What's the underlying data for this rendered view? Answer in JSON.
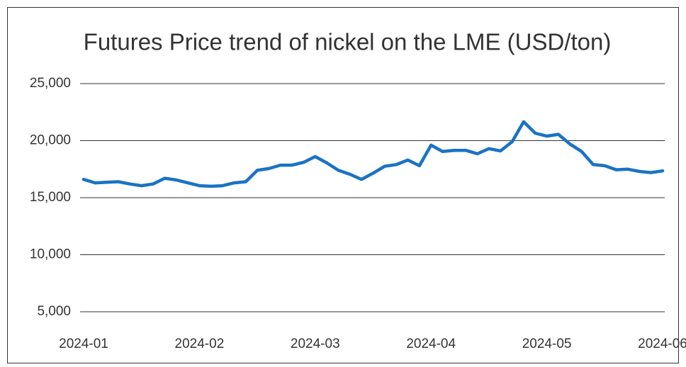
{
  "chart_data": {
    "type": "line",
    "title": "Futures Price trend of nickel on the LME (USD/ton)",
    "categories": [
      "2024-01",
      null,
      null,
      null,
      null,
      null,
      null,
      null,
      null,
      null,
      "2024-02",
      null,
      null,
      null,
      null,
      null,
      null,
      null,
      null,
      null,
      "2024-03",
      null,
      null,
      null,
      null,
      null,
      null,
      null,
      null,
      null,
      "2024-04",
      null,
      null,
      null,
      null,
      null,
      null,
      null,
      null,
      null,
      "2024-05",
      null,
      null,
      null,
      null,
      null,
      null,
      null,
      null,
      null,
      "2024-06"
    ],
    "series": [
      {
        "name": "Nickel",
        "color": "#1a73c4",
        "values": [
          16600,
          16300,
          16350,
          16400,
          16200,
          16050,
          16200,
          16700,
          16550,
          16300,
          16050,
          16000,
          16050,
          16300,
          16400,
          17400,
          17550,
          17850,
          17850,
          18100,
          18600,
          18050,
          17400,
          17050,
          16600,
          17150,
          17750,
          17900,
          18300,
          17800,
          19600,
          19050,
          19150,
          19150,
          18850,
          19300,
          19100,
          19900,
          21650,
          20650,
          20400,
          20550,
          19700,
          19050,
          17900,
          17800,
          17450,
          17500,
          17300,
          17200,
          17350
        ]
      }
    ],
    "ylim": [
      5000,
      25000
    ],
    "yticks": [
      {
        "value": 5000,
        "label": "5,000"
      },
      {
        "value": 10000,
        "label": "10,000"
      },
      {
        "value": 15000,
        "label": "15,000"
      },
      {
        "value": 20000,
        "label": "20,000"
      },
      {
        "value": 25000,
        "label": "25,000"
      }
    ],
    "grid": true
  }
}
